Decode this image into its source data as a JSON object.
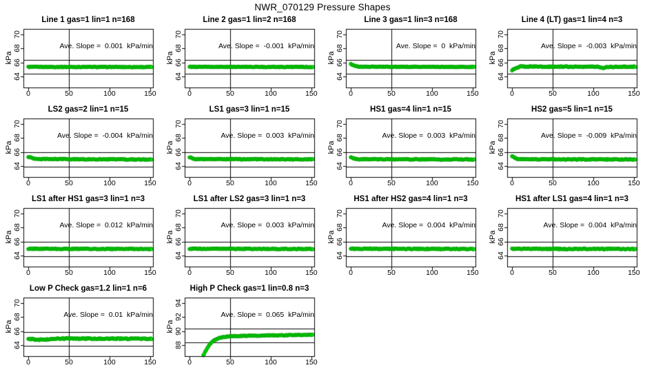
{
  "title": "NWR_070129 Pressure Shapes",
  "point_color": "#00e200",
  "point_edge_color": "#008f00",
  "axis_color": "#000000",
  "chart_data": [
    {
      "type": "scatter",
      "title": "Line 1 gas=1 lin=1 n=168",
      "slope_label": "Ave. Slope =  0.001  kPa/min",
      "ave_slope_kpa_per_min": 0.001,
      "n": 168,
      "ylabel": "kPa",
      "xlim": [
        -6,
        153.5
      ],
      "ylim": [
        62.4,
        70.8
      ],
      "xticks": [
        0,
        50,
        100,
        150
      ],
      "yticks": [
        64,
        66,
        68,
        70
      ],
      "hlines": [
        66.35,
        64.35
      ],
      "vline": 50,
      "points_breakpoints": [
        [
          0,
          65.35
        ],
        [
          152,
          65.33
        ]
      ],
      "jitter": 0.05
    },
    {
      "type": "scatter",
      "title": "Line 2 gas=1 lin=2 n=168",
      "slope_label": "Ave. Slope =  -0.001  kPa/min",
      "ave_slope_kpa_per_min": -0.001,
      "n": 168,
      "ylabel": "kPa",
      "xlim": [
        -6,
        153.5
      ],
      "ylim": [
        62.4,
        70.8
      ],
      "xticks": [
        0,
        50,
        100,
        150
      ],
      "yticks": [
        64,
        66,
        68,
        70
      ],
      "hlines": [
        66.35,
        64.35
      ],
      "vline": 50,
      "points_breakpoints": [
        [
          0,
          65.36
        ],
        [
          152,
          65.34
        ]
      ],
      "jitter": 0.05
    },
    {
      "type": "scatter",
      "title": "Line 3 gas=1 lin=3 n=168",
      "slope_label": "Ave. Slope =  0  kPa/min",
      "ave_slope_kpa_per_min": 0,
      "n": 168,
      "ylabel": "kPa",
      "xlim": [
        -6,
        153.5
      ],
      "ylim": [
        62.4,
        70.8
      ],
      "xticks": [
        0,
        50,
        100,
        150
      ],
      "yticks": [
        64,
        66,
        68,
        70
      ],
      "hlines": [
        66.35,
        64.35
      ],
      "vline": 50,
      "points_breakpoints": [
        [
          0,
          65.8
        ],
        [
          2,
          65.65
        ],
        [
          5,
          65.5
        ],
        [
          9,
          65.38
        ],
        [
          152,
          65.34
        ]
      ],
      "jitter": 0.05
    },
    {
      "type": "scatter",
      "title": "Line 4 (LT) gas=1 lin=4 n=3",
      "slope_label": "Ave. Slope =  -0.003  kPa/min",
      "ave_slope_kpa_per_min": -0.003,
      "n": 3,
      "ylabel": "kPa",
      "xlim": [
        -6,
        153.5
      ],
      "ylim": [
        62.4,
        70.8
      ],
      "xticks": [
        0,
        50,
        100,
        150
      ],
      "yticks": [
        64,
        66,
        68,
        70
      ],
      "hlines": [
        66.35,
        64.35
      ],
      "vline": 50,
      "points_breakpoints": [
        [
          0,
          64.9
        ],
        [
          1,
          64.95
        ],
        [
          3,
          65.05
        ],
        [
          6,
          65.25
        ],
        [
          10,
          65.4
        ],
        [
          60,
          65.38
        ],
        [
          105,
          65.38
        ],
        [
          112,
          65.22
        ],
        [
          118,
          65.36
        ],
        [
          152,
          65.38
        ]
      ],
      "jitter": 0.07
    },
    {
      "type": "scatter",
      "title": "LS2 gas=2 lin=1 n=15",
      "slope_label": "Ave. Slope =  -0.004  kPa/min",
      "ave_slope_kpa_per_min": -0.004,
      "n": 15,
      "ylabel": "kPa",
      "xlim": [
        -6,
        153.5
      ],
      "ylim": [
        62.4,
        70.8
      ],
      "xticks": [
        0,
        50,
        100,
        150
      ],
      "yticks": [
        64,
        66,
        68,
        70
      ],
      "hlines": [
        65.93,
        63.93
      ],
      "vline": 50,
      "points_breakpoints": [
        [
          0,
          65.3
        ],
        [
          2,
          65.25
        ],
        [
          5,
          65.1
        ],
        [
          9,
          64.98
        ],
        [
          152,
          64.92
        ]
      ],
      "jitter": 0.06
    },
    {
      "type": "scatter",
      "title": "LS1 gas=3 lin=1 n=15",
      "slope_label": "Ave. Slope =  0.003  kPa/min",
      "ave_slope_kpa_per_min": 0.003,
      "n": 15,
      "ylabel": "kPa",
      "xlim": [
        -6,
        153.5
      ],
      "ylim": [
        62.4,
        70.8
      ],
      "xticks": [
        0,
        50,
        100,
        150
      ],
      "yticks": [
        64,
        66,
        68,
        70
      ],
      "hlines": [
        65.93,
        63.93
      ],
      "vline": 50,
      "points_breakpoints": [
        [
          0,
          65.25
        ],
        [
          3,
          65.1
        ],
        [
          8,
          64.97
        ],
        [
          152,
          64.94
        ]
      ],
      "jitter": 0.06
    },
    {
      "type": "scatter",
      "title": "HS1 gas=4 lin=1 n=15",
      "slope_label": "Ave. Slope =  0.003  kPa/min",
      "ave_slope_kpa_per_min": 0.003,
      "n": 15,
      "ylabel": "kPa",
      "xlim": [
        -6,
        153.5
      ],
      "ylim": [
        62.4,
        70.8
      ],
      "xticks": [
        0,
        50,
        100,
        150
      ],
      "yticks": [
        64,
        66,
        68,
        70
      ],
      "hlines": [
        65.93,
        63.93
      ],
      "vline": 50,
      "points_breakpoints": [
        [
          0,
          65.2
        ],
        [
          3,
          65.08
        ],
        [
          8,
          64.96
        ],
        [
          152,
          64.92
        ]
      ],
      "jitter": 0.06
    },
    {
      "type": "scatter",
      "title": "HS2 gas=5 lin=1 n=15",
      "slope_label": "Ave. Slope =  -0.009  kPa/min",
      "ave_slope_kpa_per_min": -0.009,
      "n": 15,
      "ylabel": "kPa",
      "xlim": [
        -6,
        153.5
      ],
      "ylim": [
        62.4,
        70.8
      ],
      "xticks": [
        0,
        50,
        100,
        150
      ],
      "yticks": [
        64,
        66,
        68,
        70
      ],
      "hlines": [
        65.93,
        63.93
      ],
      "vline": 50,
      "points_breakpoints": [
        [
          0,
          65.35
        ],
        [
          3,
          65.18
        ],
        [
          7,
          65.0
        ],
        [
          11,
          64.95
        ],
        [
          152,
          64.92
        ]
      ],
      "jitter": 0.06
    },
    {
      "type": "scatter",
      "title": "LS1 after HS1 gas=3 lin=1 n=3",
      "slope_label": "Ave. Slope =  0.012  kPa/min",
      "ave_slope_kpa_per_min": 0.012,
      "n": 3,
      "ylabel": "kPa",
      "xlim": [
        -6,
        153.5
      ],
      "ylim": [
        62.4,
        70.8
      ],
      "xticks": [
        0,
        50,
        100,
        150
      ],
      "yticks": [
        64,
        66,
        68,
        70
      ],
      "hlines": [
        65.93,
        63.93
      ],
      "vline": 50,
      "points_breakpoints": [
        [
          0,
          64.95
        ],
        [
          152,
          64.93
        ]
      ],
      "jitter": 0.06
    },
    {
      "type": "scatter",
      "title": "LS1 after LS2 gas=3 lin=1 n=3",
      "slope_label": "Ave. Slope =  0.003  kPa/min",
      "ave_slope_kpa_per_min": 0.003,
      "n": 3,
      "ylabel": "kPa",
      "xlim": [
        -6,
        153.5
      ],
      "ylim": [
        62.4,
        70.8
      ],
      "xticks": [
        0,
        50,
        100,
        150
      ],
      "yticks": [
        64,
        66,
        68,
        70
      ],
      "hlines": [
        65.93,
        63.93
      ],
      "vline": 50,
      "points_breakpoints": [
        [
          0,
          64.96
        ],
        [
          152,
          64.93
        ]
      ],
      "jitter": 0.06
    },
    {
      "type": "scatter",
      "title": "HS1 after HS2 gas=4 lin=1 n=3",
      "slope_label": "Ave. Slope =  0.004  kPa/min",
      "ave_slope_kpa_per_min": 0.004,
      "n": 3,
      "ylabel": "kPa",
      "xlim": [
        -6,
        153.5
      ],
      "ylim": [
        62.4,
        70.8
      ],
      "xticks": [
        0,
        50,
        100,
        150
      ],
      "yticks": [
        64,
        66,
        68,
        70
      ],
      "hlines": [
        65.93,
        63.93
      ],
      "vline": 50,
      "points_breakpoints": [
        [
          0,
          64.95
        ],
        [
          152,
          64.93
        ]
      ],
      "jitter": 0.07
    },
    {
      "type": "scatter",
      "title": "HS1 after LS1 gas=4 lin=1 n=3",
      "slope_label": "Ave. Slope =  0.004  kPa/min",
      "ave_slope_kpa_per_min": 0.004,
      "n": 3,
      "ylabel": "kPa",
      "xlim": [
        -6,
        153.5
      ],
      "ylim": [
        62.4,
        70.8
      ],
      "xticks": [
        0,
        50,
        100,
        150
      ],
      "yticks": [
        64,
        66,
        68,
        70
      ],
      "hlines": [
        65.93,
        63.93
      ],
      "vline": 50,
      "points_breakpoints": [
        [
          0,
          64.95
        ],
        [
          152,
          64.93
        ]
      ],
      "jitter": 0.07
    },
    {
      "type": "scatter",
      "title": "Low P Check gas=1.2 lin=1 n=6",
      "slope_label": "Ave. Slope =  0.01  kPa/min",
      "ave_slope_kpa_per_min": 0.01,
      "n": 6,
      "ylabel": "kPa",
      "xlim": [
        -6,
        153.5
      ],
      "ylim": [
        62.4,
        70.8
      ],
      "xticks": [
        0,
        50,
        100,
        150
      ],
      "yticks": [
        64,
        66,
        68,
        70
      ],
      "hlines": [
        65.85,
        63.85
      ],
      "vline": 50,
      "points_breakpoints": [
        [
          0,
          64.9
        ],
        [
          5,
          64.82
        ],
        [
          10,
          64.78
        ],
        [
          18,
          64.76
        ],
        [
          24,
          64.8
        ],
        [
          30,
          64.88
        ],
        [
          35,
          64.95
        ],
        [
          45,
          64.92
        ],
        [
          152,
          64.9
        ]
      ],
      "jitter": 0.08
    },
    {
      "type": "scatter",
      "title": "High P Check gas=1 lin=0.8 n=3",
      "slope_label": "Ave. Slope =  0.065  kPa/min",
      "ave_slope_kpa_per_min": 0.065,
      "n": 3,
      "ylabel": "kPa",
      "xlim": [
        -6,
        153.5
      ],
      "ylim": [
        86.4,
        94.8
      ],
      "xticks": [
        0,
        50,
        100,
        150
      ],
      "yticks": [
        88,
        90,
        92,
        94
      ],
      "hlines": [
        90.35,
        88.35
      ],
      "vline": 50,
      "points_breakpoints": [
        [
          17,
          86.55
        ],
        [
          19,
          86.95
        ],
        [
          21,
          87.4
        ],
        [
          23,
          87.8
        ],
        [
          25,
          88.1
        ],
        [
          28,
          88.45
        ],
        [
          31,
          88.7
        ],
        [
          35,
          88.95
        ],
        [
          40,
          89.1
        ],
        [
          46,
          89.2
        ],
        [
          55,
          89.27
        ],
        [
          70,
          89.32
        ],
        [
          100,
          89.38
        ],
        [
          130,
          89.42
        ],
        [
          152,
          89.45
        ]
      ],
      "jitter": 0.05
    }
  ]
}
